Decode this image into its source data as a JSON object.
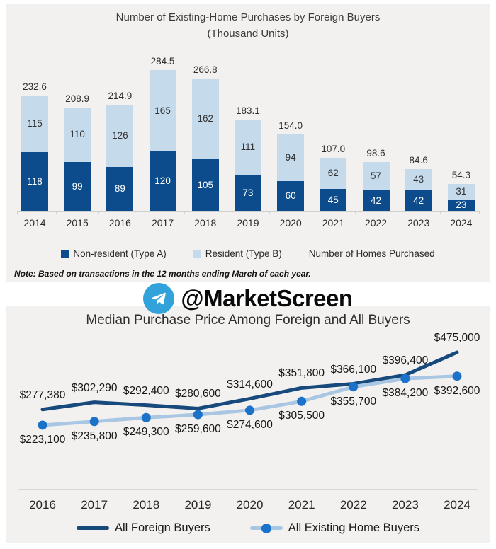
{
  "colors": {
    "panel_bg": "#f2f1ef",
    "bar_dark": "#0c4c8c",
    "bar_light": "#c5dbec",
    "axis": "#cfcfcf",
    "foreign_line": "#17497c",
    "existing_line": "#a9c6e3",
    "existing_marker": "#1b72c8",
    "telegram_blue": "#31a2da"
  },
  "watermark": {
    "handle": "@MarketScreen"
  },
  "chart_data": [
    {
      "type": "bar",
      "stacked": true,
      "title": "Number of Existing-Home Purchases by Foreign Buyers",
      "subtitle": "(Thousand Units)",
      "categories": [
        "2014",
        "2015",
        "2016",
        "2017",
        "2018",
        "2019",
        "2020",
        "2021",
        "2022",
        "2023",
        "2024"
      ],
      "series": [
        {
          "name": "Non-resident (Type A)",
          "color": "#0c4c8c",
          "values": [
            118,
            99,
            89,
            120,
            105,
            73,
            60,
            45,
            42,
            42,
            23
          ]
        },
        {
          "name": "Resident (Type B)",
          "color": "#c5dbec",
          "values": [
            115,
            110,
            126,
            165,
            162,
            111,
            94,
            62,
            57,
            43,
            31
          ]
        }
      ],
      "total_labels": [
        "232.6",
        "208.9",
        "214.9",
        "284.5",
        "266.8",
        "183.1",
        "154.0",
        "107.0",
        "98.6",
        "84.6",
        "54.3"
      ],
      "legend": [
        "Non-resident (Type A)",
        "Resident (Type B)",
        "Number of Homes Purchased"
      ],
      "legend_position": "bottom",
      "note": "Note: Based on transactions in the 12 months ending March of each year.",
      "ylim": [
        0,
        300
      ],
      "grid": false
    },
    {
      "type": "line",
      "title": "Median Purchase Price Among Foreign and All Buyers",
      "x": [
        "2016",
        "2017",
        "2018",
        "2019",
        "2020",
        "2021",
        "2022",
        "2023",
        "2024"
      ],
      "series": [
        {
          "name": "All Foreign Buyers",
          "color": "#17497c",
          "marker": false,
          "values": [
            277380,
            302290,
            292400,
            280600,
            314600,
            351800,
            366100,
            396400,
            475000
          ]
        },
        {
          "name": "All Existing Home Buyers",
          "color": "#a9c6e3",
          "marker": true,
          "marker_color": "#1b72c8",
          "values": [
            223100,
            235800,
            249300,
            259600,
            274600,
            305500,
            355700,
            384200,
            392600
          ]
        }
      ],
      "label_format": "$#,##0",
      "ylim": [
        200000,
        500000
      ],
      "grid": false,
      "legend_position": "bottom"
    }
  ]
}
